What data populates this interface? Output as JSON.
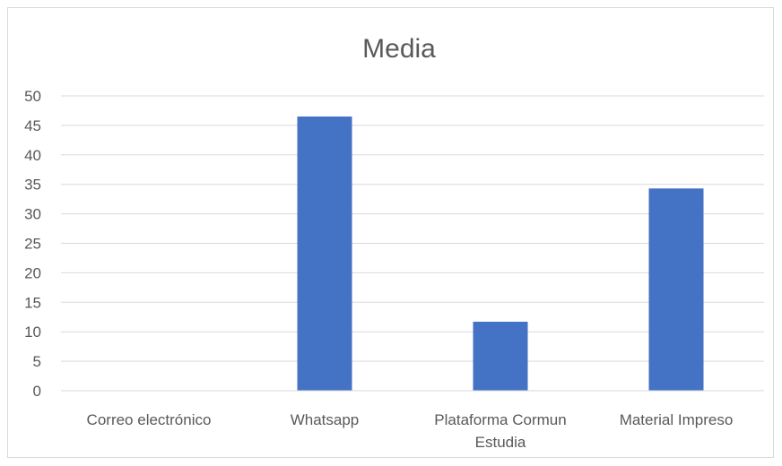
{
  "chart_data": {
    "type": "bar",
    "title": "Media",
    "categories": [
      [
        "Correo electrónico"
      ],
      [
        "Whatsapp"
      ],
      [
        "Plataforma Cormun",
        "Estudia"
      ],
      [
        "Material Impreso"
      ]
    ],
    "values": [
      0,
      46.5,
      11.7,
      34.3
    ],
    "ylim": [
      0,
      50
    ],
    "yticks": [
      0,
      5,
      10,
      15,
      20,
      25,
      30,
      35,
      40,
      45,
      50
    ],
    "grid": true,
    "legend": "none",
    "bar_color": "#4472c4"
  }
}
